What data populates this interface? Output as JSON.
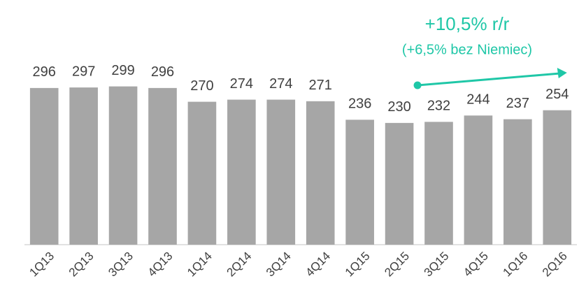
{
  "chart_data": {
    "type": "bar",
    "categories": [
      "1Q13",
      "2Q13",
      "3Q13",
      "4Q13",
      "1Q14",
      "2Q14",
      "3Q14",
      "4Q14",
      "1Q15",
      "2Q15",
      "3Q15",
      "4Q15",
      "1Q16",
      "2Q16"
    ],
    "values": [
      296,
      297,
      299,
      296,
      270,
      274,
      274,
      271,
      236,
      230,
      232,
      244,
      237,
      254
    ],
    "color": "#a6a6a6",
    "ylim": [
      0,
      350
    ],
    "annotations": [
      "+10,5% r/r",
      "(+6,5% bez Niemiec)"
    ],
    "annotation_color": "#1fc7a7"
  }
}
